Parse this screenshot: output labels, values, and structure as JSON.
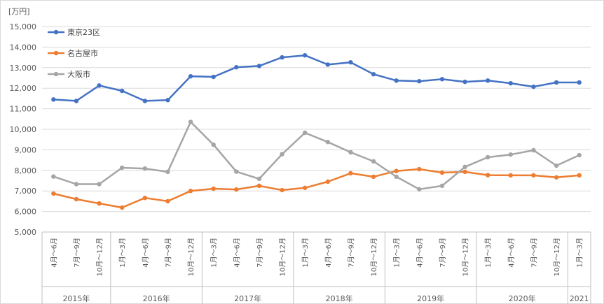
{
  "chart_data": {
    "type": "line",
    "unit_label": "[万円]",
    "ylim": [
      5000,
      15000
    ],
    "y_ticks": [
      "5,000",
      "6,000",
      "7,000",
      "8,000",
      "9,000",
      "10,000",
      "11,000",
      "12,000",
      "13,000",
      "14,000",
      "15,000"
    ],
    "y_tick_values": [
      5000,
      6000,
      7000,
      8000,
      9000,
      10000,
      11000,
      12000,
      13000,
      14000,
      15000
    ],
    "grid": true,
    "legend_position": "top-left",
    "categories": [
      "4月～6月",
      "7月～9月",
      "10月～12月",
      "1月～3月",
      "4月～6月",
      "7月～9月",
      "10月～12月",
      "1月～3月",
      "4月～6月",
      "7月～9月",
      "10月～12月",
      "1月～3月",
      "4月～6月",
      "7月～9月",
      "10月～12月",
      "1月～3月",
      "4月～6月",
      "7月～9月",
      "10月～12月",
      "1月～3月",
      "4月～6月",
      "7月～9月",
      "10月～12月",
      "1月～3月"
    ],
    "year_groups": [
      {
        "label": "2015年",
        "count": 3
      },
      {
        "label": "2016年",
        "count": 4
      },
      {
        "label": "2017年",
        "count": 4
      },
      {
        "label": "2018年",
        "count": 4
      },
      {
        "label": "2019年",
        "count": 4
      },
      {
        "label": "2020年",
        "count": 4
      },
      {
        "label": "2021",
        "count": 1
      }
    ],
    "series": [
      {
        "name": "東京23区",
        "color": "#4472c4",
        "values": [
          11450,
          11380,
          12130,
          11870,
          11380,
          11420,
          12580,
          12550,
          13020,
          13080,
          13500,
          13600,
          13150,
          13260,
          12680,
          12370,
          12340,
          12440,
          12310,
          12370,
          12240,
          12070,
          12280,
          12280
        ]
      },
      {
        "name": "名古屋市",
        "color": "#ed7d31",
        "values": [
          6870,
          6600,
          6390,
          6190,
          6660,
          6500,
          7000,
          7110,
          7070,
          7250,
          7040,
          7150,
          7450,
          7860,
          7690,
          7970,
          8060,
          7890,
          7930,
          7770,
          7760,
          7760,
          7660,
          7760
        ]
      },
      {
        "name": "大阪市",
        "color": "#a5a5a5",
        "values": [
          7700,
          7330,
          7330,
          8130,
          8090,
          7930,
          10360,
          9250,
          7940,
          7590,
          8790,
          9830,
          9380,
          8880,
          8440,
          7690,
          7080,
          7250,
          8170,
          8640,
          8770,
          8980,
          8230,
          8740
        ]
      }
    ]
  }
}
